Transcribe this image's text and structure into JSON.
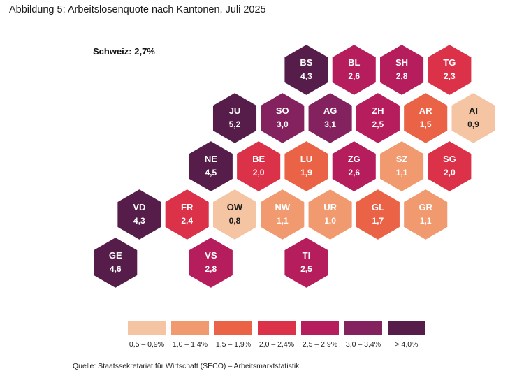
{
  "title": "Abbildung 5: Arbeitslosenquote nach Kantonen, Juli 2025",
  "source": "Quelle: Staatssekretariat für Wirtschaft (SECO) – Arbeitsmarktstatistik.",
  "chart_data": {
    "type": "hexbin-map",
    "national_label": "Schweiz: 2,7%",
    "national_value": 2.7,
    "unit": "%",
    "cantons": [
      {
        "code": "BS",
        "label": "4,3",
        "value": 4.3,
        "row": 0,
        "col": 2
      },
      {
        "code": "BL",
        "label": "2,6",
        "value": 2.6,
        "row": 0,
        "col": 3
      },
      {
        "code": "SH",
        "label": "2,8",
        "value": 2.8,
        "row": 0,
        "col": 4
      },
      {
        "code": "TG",
        "label": "2,3",
        "value": 2.3,
        "row": 0,
        "col": 5
      },
      {
        "code": "JU",
        "label": "5,2",
        "value": 5.2,
        "row": 1,
        "col": 1
      },
      {
        "code": "SO",
        "label": "3,0",
        "value": 3.0,
        "row": 1,
        "col": 2
      },
      {
        "code": "AG",
        "label": "3,1",
        "value": 3.1,
        "row": 1,
        "col": 3
      },
      {
        "code": "ZH",
        "label": "2,5",
        "value": 2.5,
        "row": 1,
        "col": 4
      },
      {
        "code": "AR",
        "label": "1,5",
        "value": 1.5,
        "row": 1,
        "col": 5
      },
      {
        "code": "AI",
        "label": "0,9",
        "value": 0.9,
        "row": 1,
        "col": 6
      },
      {
        "code": "NE",
        "label": "4,5",
        "value": 4.5,
        "row": 2,
        "col": 1
      },
      {
        "code": "BE",
        "label": "2,0",
        "value": 2.0,
        "row": 2,
        "col": 2
      },
      {
        "code": "LU",
        "label": "1,9",
        "value": 1.9,
        "row": 2,
        "col": 3
      },
      {
        "code": "ZG",
        "label": "2,6",
        "value": 2.6,
        "row": 2,
        "col": 4
      },
      {
        "code": "SZ",
        "label": "1,1",
        "value": 1.1,
        "row": 2,
        "col": 5
      },
      {
        "code": "SG",
        "label": "2,0",
        "value": 2.0,
        "row": 2,
        "col": 6
      },
      {
        "code": "VD",
        "label": "4,3",
        "value": 4.3,
        "row": 3,
        "col": 0
      },
      {
        "code": "FR",
        "label": "2,4",
        "value": 2.4,
        "row": 3,
        "col": 1
      },
      {
        "code": "OW",
        "label": "0,8",
        "value": 0.8,
        "row": 3,
        "col": 2
      },
      {
        "code": "NW",
        "label": "1,1",
        "value": 1.1,
        "row": 3,
        "col": 3
      },
      {
        "code": "UR",
        "label": "1,0",
        "value": 1.0,
        "row": 3,
        "col": 4
      },
      {
        "code": "GL",
        "label": "1,7",
        "value": 1.7,
        "row": 3,
        "col": 5
      },
      {
        "code": "GR",
        "label": "1,1",
        "value": 1.1,
        "row": 3,
        "col": 6
      },
      {
        "code": "GE",
        "label": "4,6",
        "value": 4.6,
        "row": 4,
        "col": 0
      },
      {
        "code": "VS",
        "label": "2,8",
        "value": 2.8,
        "row": 4,
        "col": 2
      },
      {
        "code": "TI",
        "label": "2,5",
        "value": 2.5,
        "row": 4,
        "col": 4
      }
    ],
    "legend": [
      {
        "label": "0,5 – 0,9%",
        "min": 0.5,
        "max": 0.9,
        "color": "#f5c4a2"
      },
      {
        "label": "1,0 – 1,4%",
        "min": 1.0,
        "max": 1.4,
        "color": "#f29a6f"
      },
      {
        "label": "1,5 – 1,9%",
        "min": 1.5,
        "max": 1.9,
        "color": "#ea6347"
      },
      {
        "label": "2,0 – 2,4%",
        "min": 2.0,
        "max": 2.4,
        "color": "#dc3249"
      },
      {
        "label": "2,5 – 2,9%",
        "min": 2.5,
        "max": 2.9,
        "color": "#b51d5c"
      },
      {
        "label": "3,0 – 3,4%",
        "min": 3.0,
        "max": 3.4,
        "color": "#83225f"
      },
      {
        "label": "> 4,0%",
        "min": 4.0,
        "max": null,
        "color": "#561d4a"
      }
    ]
  }
}
